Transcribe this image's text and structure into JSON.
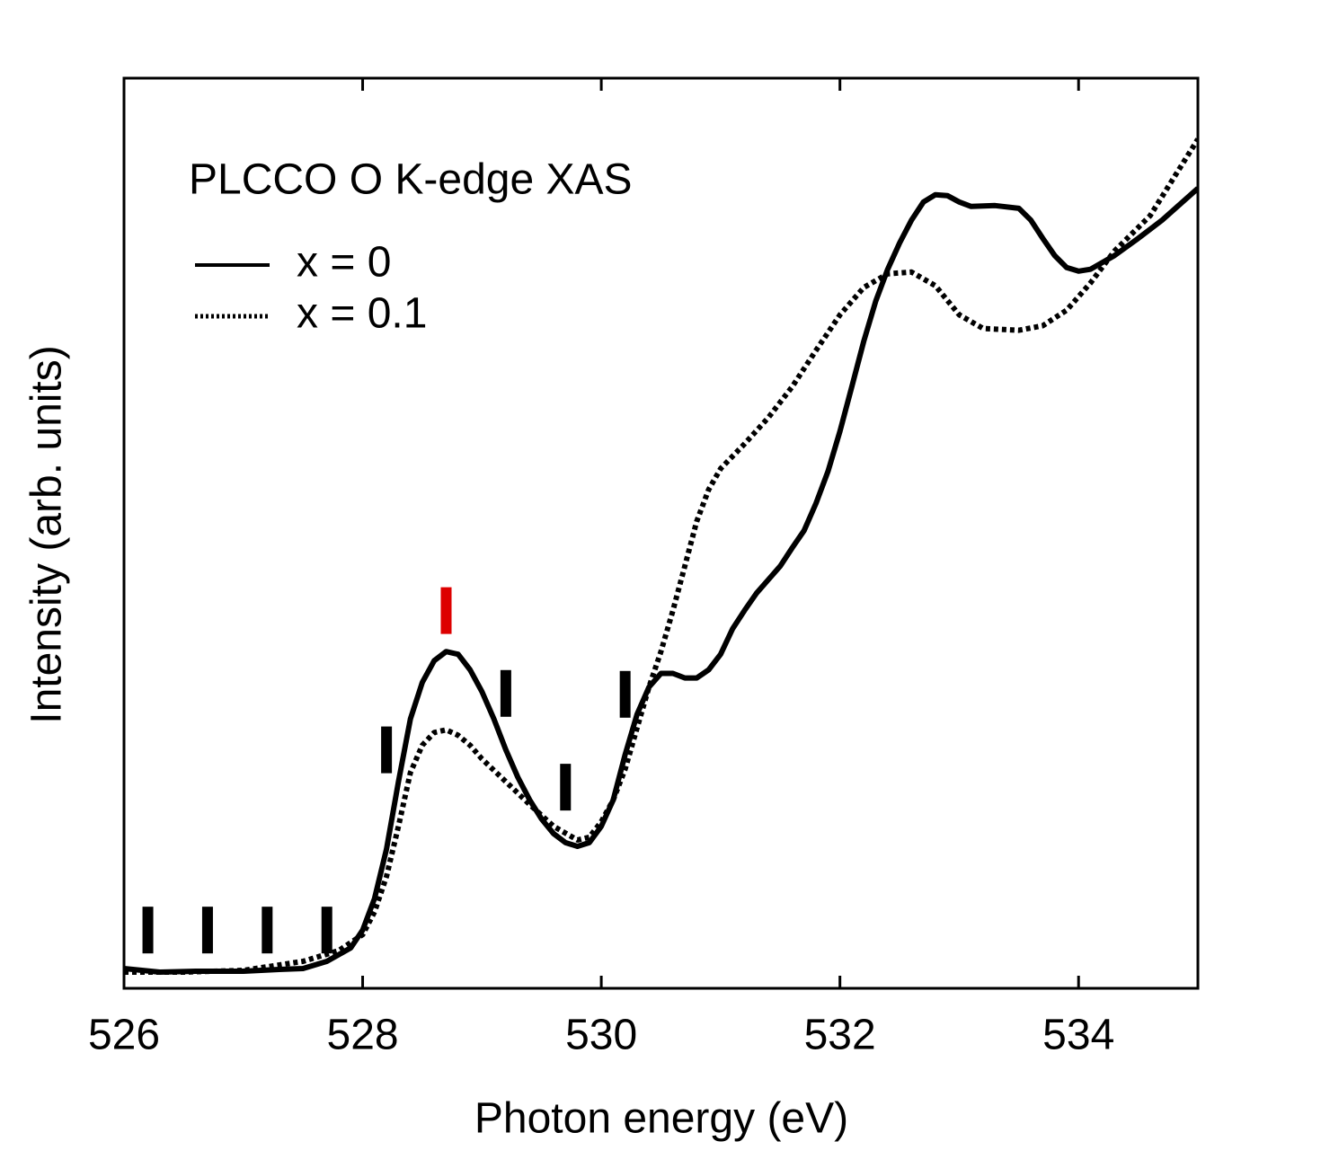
{
  "chart_data": {
    "type": "line",
    "title": "PLCCO O K-edge XAS",
    "x_label": "Photon energy (eV)",
    "y_label": "Intensity (arb. units)",
    "xlim": [
      526,
      535
    ],
    "xticks": [
      526,
      528,
      530,
      532,
      534
    ],
    "ylim": [
      0,
      100
    ],
    "legend": "upper left",
    "series": [
      {
        "name": "x = 0",
        "color": "#000000",
        "style": "solid",
        "x": [
          526,
          526.3,
          526.6,
          527,
          527.3,
          527.5,
          527.7,
          527.9,
          528.0,
          528.1,
          528.2,
          528.3,
          528.4,
          528.5,
          528.6,
          528.7,
          528.8,
          528.9,
          529.0,
          529.1,
          529.2,
          529.3,
          529.4,
          529.5,
          529.6,
          529.7,
          529.8,
          529.9,
          530.0,
          530.1,
          530.2,
          530.3,
          530.4,
          530.5,
          530.6,
          530.7,
          530.8,
          530.9,
          531.0,
          531.1,
          531.2,
          531.3,
          531.4,
          531.5,
          531.6,
          531.7,
          531.8,
          531.9,
          532.0,
          532.1,
          532.2,
          532.3,
          532.4,
          532.5,
          532.6,
          532.7,
          532.8,
          532.9,
          533.0,
          533.1,
          533.3,
          533.5,
          533.6,
          533.7,
          533.8,
          533.9,
          534.0,
          534.1,
          534.3,
          534.5,
          534.7,
          535.0
        ],
        "values": [
          2.17,
          1.78,
          1.88,
          1.88,
          2.07,
          2.17,
          2.96,
          4.44,
          6.4,
          9.87,
          15.3,
          22.7,
          29.6,
          33.6,
          36.0,
          37.0,
          36.7,
          35.0,
          32.6,
          29.6,
          26.2,
          23.2,
          20.7,
          18.6,
          17.0,
          16.0,
          15.6,
          16.0,
          17.8,
          20.7,
          25.7,
          30.1,
          33.1,
          34.6,
          34.6,
          34.1,
          34.1,
          35.0,
          36.7,
          39.5,
          41.5,
          43.4,
          44.9,
          46.4,
          48.4,
          50.3,
          53.3,
          56.8,
          61.2,
          66.1,
          71.1,
          75.5,
          79.0,
          81.9,
          84.4,
          86.4,
          87.2,
          87.1,
          86.4,
          85.9,
          86.0,
          85.7,
          84.4,
          82.4,
          80.5,
          79.2,
          78.8,
          79.0,
          80.5,
          82.4,
          84.4,
          87.9
        ]
      },
      {
        "name": "x = 0.1",
        "color": "#000000",
        "style": "dotted",
        "x": [
          526,
          526.5,
          527,
          527.5,
          527.8,
          528.0,
          528.1,
          528.2,
          528.3,
          528.4,
          528.5,
          528.6,
          528.7,
          528.8,
          528.9,
          529.0,
          529.2,
          529.4,
          529.6,
          529.8,
          529.9,
          530.0,
          530.1,
          530.2,
          530.3,
          530.4,
          530.5,
          530.6,
          530.7,
          530.8,
          530.9,
          531.0,
          531.2,
          531.4,
          531.6,
          531.8,
          532.0,
          532.2,
          532.4,
          532.6,
          532.8,
          533.0,
          533.2,
          533.5,
          533.7,
          533.9,
          534.1,
          534.3,
          534.6,
          535.0
        ],
        "values": [
          1.78,
          1.78,
          1.97,
          2.96,
          4.15,
          5.9,
          8.4,
          12.3,
          17.8,
          23.7,
          26.7,
          28.1,
          28.4,
          27.8,
          26.7,
          25.2,
          22.7,
          20.2,
          17.8,
          16.3,
          16.6,
          18.3,
          20.7,
          24.1,
          28.6,
          33.1,
          37.0,
          41.5,
          46.4,
          51.3,
          54.8,
          57.1,
          59.8,
          62.7,
          66.1,
          70.1,
          74.0,
          77.0,
          78.5,
          78.7,
          77.2,
          74.0,
          72.5,
          72.3,
          72.8,
          74.5,
          77.5,
          81.0,
          84.9,
          93.3
        ]
      }
    ],
    "markers": [
      {
        "x": 526.2,
        "y": 6.4,
        "color": "#000000"
      },
      {
        "x": 526.7,
        "y": 6.4,
        "color": "#000000"
      },
      {
        "x": 527.2,
        "y": 6.4,
        "color": "#000000"
      },
      {
        "x": 527.7,
        "y": 6.4,
        "color": "#000000"
      },
      {
        "x": 528.2,
        "y": 26.2,
        "color": "#000000"
      },
      {
        "x": 528.7,
        "y": 41.5,
        "color": "#dd0000"
      },
      {
        "x": 529.2,
        "y": 32.4,
        "color": "#000000"
      },
      {
        "x": 529.7,
        "y": 22.1,
        "color": "#000000"
      },
      {
        "x": 530.2,
        "y": 32.3,
        "color": "#000000"
      }
    ]
  }
}
